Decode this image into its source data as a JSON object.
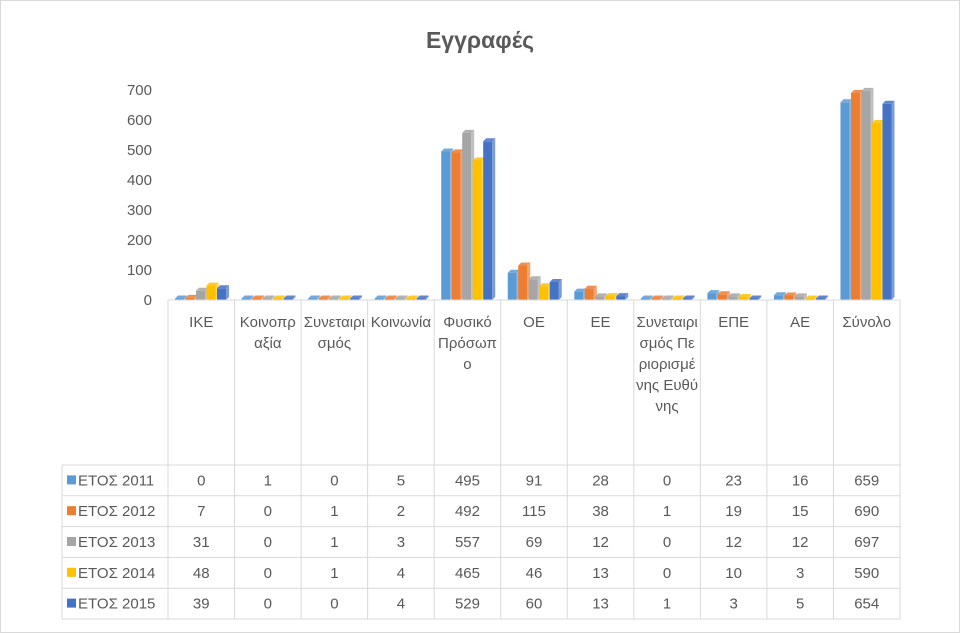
{
  "chart_data": {
    "type": "bar",
    "title": "Εγγραφές",
    "xlabel": "",
    "ylabel": "",
    "ylim": [
      0,
      700
    ],
    "yticks": [
      0,
      100,
      200,
      300,
      400,
      500,
      600,
      700
    ],
    "grid": false,
    "legend": "data-table",
    "categories": [
      "ΙΚΕ",
      "Κοινοπραξία",
      "Συνεταιρισμός",
      "Κοινωνία",
      "Φυσικό Πρόσωπο",
      "ΟΕ",
      "ΕΕ",
      "Συνεταιρισμός Περιορισμένης Ευθύνης",
      "ΕΠΕ",
      "ΑΕ",
      "Σύνολο"
    ],
    "series": [
      {
        "name": "ΕΤΟΣ 2011",
        "color": "#5b9bd5",
        "values": [
          0,
          1,
          0,
          5,
          495,
          91,
          28,
          0,
          23,
          16,
          659
        ]
      },
      {
        "name": "ΕΤΟΣ 2012",
        "color": "#ed7d31",
        "values": [
          7,
          0,
          1,
          2,
          492,
          115,
          38,
          1,
          19,
          15,
          690
        ]
      },
      {
        "name": "ΕΤΟΣ 2013",
        "color": "#a5a5a5",
        "values": [
          31,
          0,
          1,
          3,
          557,
          69,
          12,
          0,
          12,
          12,
          697
        ]
      },
      {
        "name": "ΕΤΟΣ 2014",
        "color": "#ffc000",
        "values": [
          48,
          0,
          1,
          4,
          465,
          46,
          13,
          0,
          10,
          3,
          590
        ]
      },
      {
        "name": "ΕΤΟΣ 2015",
        "color": "#4472c4",
        "values": [
          39,
          0,
          0,
          4,
          529,
          60,
          13,
          1,
          3,
          5,
          654
        ]
      }
    ]
  }
}
